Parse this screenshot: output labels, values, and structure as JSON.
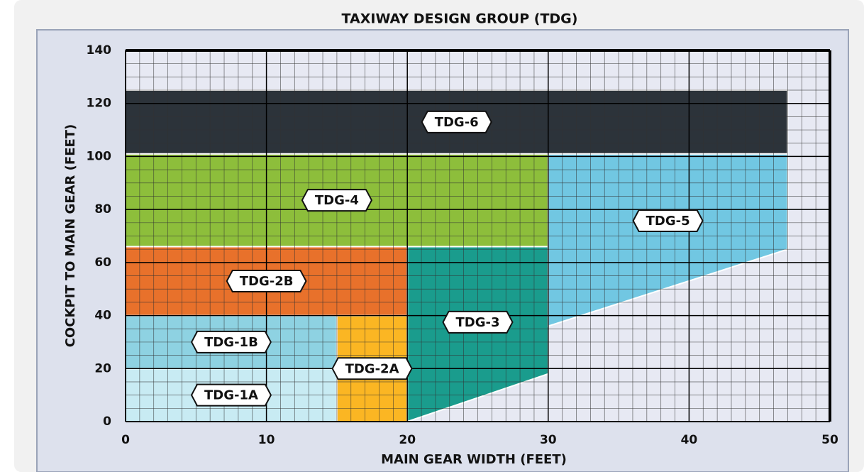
{
  "chart_data": {
    "type": "region",
    "title": "TAXIWAY DESIGN GROUP (TDG)",
    "x_label": "MAIN GEAR WIDTH (FEET)",
    "y_label": "COCKPIT TO MAIN GEAR (FEET)",
    "xlim": [
      0,
      50
    ],
    "xticks": [
      0,
      10,
      20,
      30,
      40,
      50
    ],
    "ylim": [
      0,
      140
    ],
    "yticks": [
      0,
      20,
      40,
      60,
      80,
      100,
      120,
      140
    ],
    "grid": true,
    "regions": [
      {
        "name": "TDG-1A",
        "color": "#c8ebf3",
        "points": [
          [
            0,
            0
          ],
          [
            15,
            0
          ],
          [
            15,
            20
          ],
          [
            0,
            20
          ]
        ]
      },
      {
        "name": "TDG-1B",
        "color": "#8ed2e2",
        "points": [
          [
            0,
            20
          ],
          [
            15,
            20
          ],
          [
            15,
            40
          ],
          [
            0,
            40
          ]
        ]
      },
      {
        "name": "TDG-2A",
        "color": "#fbb623",
        "points": [
          [
            15,
            0
          ],
          [
            20,
            0
          ],
          [
            20,
            40
          ],
          [
            15,
            40
          ]
        ]
      },
      {
        "name": "TDG-2B",
        "color": "#e8712b",
        "points": [
          [
            0,
            40
          ],
          [
            20,
            40
          ],
          [
            20,
            66
          ],
          [
            0,
            66
          ]
        ]
      },
      {
        "name": "TDG-3",
        "color": "#1a9c8d",
        "points": [
          [
            20,
            0
          ],
          [
            30,
            18
          ],
          [
            30,
            66
          ],
          [
            20,
            66
          ]
        ]
      },
      {
        "name": "TDG-4",
        "color": "#8dbe3b",
        "points": [
          [
            0,
            66
          ],
          [
            30,
            66
          ],
          [
            30,
            101
          ],
          [
            0,
            101
          ]
        ]
      },
      {
        "name": "TDG-5",
        "color": "#71c7e2",
        "points": [
          [
            30,
            36
          ],
          [
            47,
            65
          ],
          [
            47,
            101
          ],
          [
            30,
            101
          ]
        ]
      },
      {
        "name": "TDG-6",
        "color": "#2c333a",
        "points": [
          [
            0,
            101
          ],
          [
            47,
            101
          ],
          [
            47,
            125
          ],
          [
            0,
            125
          ]
        ]
      }
    ]
  }
}
